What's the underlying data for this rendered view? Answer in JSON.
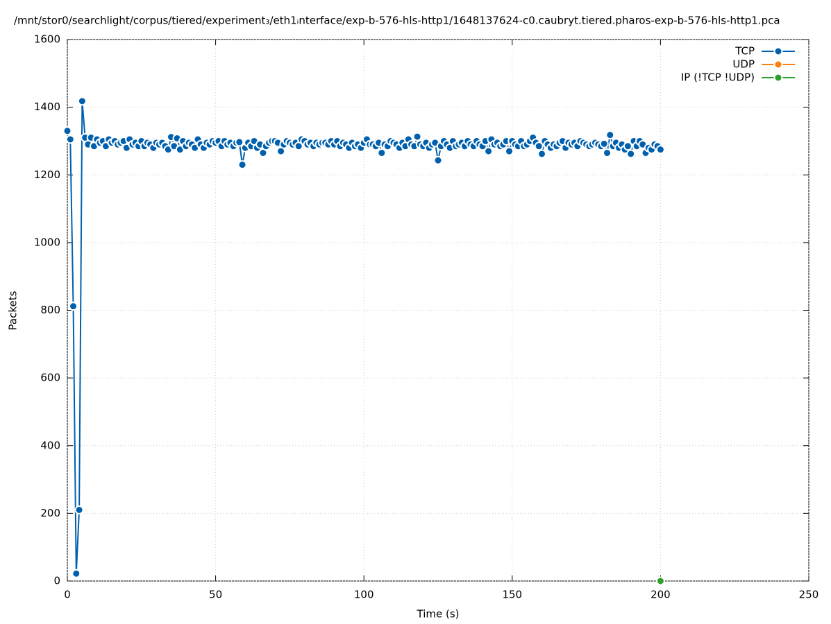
{
  "chart_data": {
    "type": "line",
    "title": "/mnt/stor0/searchlight/corpus/tiered/experiment₃/eth1ᵢnterface/exp-b-576-hls-http1/1648137624-c0.caubryt.tiered.pharos-exp-b-576-hls-http1.pca",
    "xlabel": "Time (s)",
    "ylabel": "Packets",
    "xlim": [
      0,
      250
    ],
    "xticks": [
      0,
      50,
      100,
      150,
      200,
      250
    ],
    "ylim": [
      0,
      1600
    ],
    "yticks": [
      0,
      200,
      400,
      600,
      800,
      1000,
      1200,
      1400,
      1600
    ],
    "grid": true,
    "legend": "upper right",
    "series": [
      {
        "name": "TCP",
        "color": "#0060ad",
        "x": [
          0,
          1,
          2,
          3,
          4,
          5,
          6,
          7,
          8,
          9,
          10,
          11,
          12,
          13,
          14,
          15,
          16,
          17,
          18,
          19,
          20,
          21,
          22,
          23,
          24,
          25,
          26,
          27,
          28,
          29,
          30,
          31,
          32,
          33,
          34,
          35,
          36,
          37,
          38,
          39,
          40,
          41,
          42,
          43,
          44,
          45,
          46,
          47,
          48,
          49,
          50,
          51,
          52,
          53,
          54,
          55,
          56,
          57,
          58,
          59,
          60,
          61,
          62,
          63,
          64,
          65,
          66,
          67,
          68,
          69,
          70,
          71,
          72,
          73,
          74,
          75,
          76,
          77,
          78,
          79,
          80,
          81,
          82,
          83,
          84,
          85,
          86,
          87,
          88,
          89,
          90,
          91,
          92,
          93,
          94,
          95,
          96,
          97,
          98,
          99,
          100,
          101,
          102,
          103,
          104,
          105,
          106,
          107,
          108,
          109,
          110,
          111,
          112,
          113,
          114,
          115,
          116,
          117,
          118,
          119,
          120,
          121,
          122,
          123,
          124,
          125,
          126,
          127,
          128,
          129,
          130,
          131,
          132,
          133,
          134,
          135,
          136,
          137,
          138,
          139,
          140,
          141,
          142,
          143,
          144,
          145,
          146,
          147,
          148,
          149,
          150,
          151,
          152,
          153,
          154,
          155,
          156,
          157,
          158,
          159,
          160,
          161,
          162,
          163,
          164,
          165,
          166,
          167,
          168,
          169,
          170,
          171,
          172,
          173,
          174,
          175,
          176,
          177,
          178,
          179,
          180,
          181,
          182,
          183,
          184,
          185,
          186,
          187,
          188,
          189,
          190,
          191,
          192,
          193,
          194,
          195,
          196,
          197,
          198,
          199,
          200
        ],
        "values": [
          1330,
          1305,
          812,
          22,
          210,
          1418,
          1310,
          1290,
          1310,
          1285,
          1305,
          1295,
          1300,
          1285,
          1305,
          1295,
          1300,
          1290,
          1295,
          1300,
          1280,
          1305,
          1290,
          1295,
          1285,
          1300,
          1285,
          1295,
          1290,
          1280,
          1295,
          1290,
          1295,
          1285,
          1275,
          1312,
          1285,
          1308,
          1275,
          1300,
          1285,
          1295,
          1290,
          1280,
          1305,
          1290,
          1280,
          1295,
          1290,
          1300,
          1295,
          1300,
          1285,
          1300,
          1290,
          1295,
          1285,
          1295,
          1297,
          1230,
          1280,
          1295,
          1285,
          1300,
          1280,
          1290,
          1265,
          1285,
          1295,
          1300,
          1300,
          1295,
          1270,
          1290,
          1300,
          1295,
          1290,
          1295,
          1285,
          1305,
          1300,
          1290,
          1295,
          1285,
          1295,
          1290,
          1295,
          1295,
          1290,
          1300,
          1290,
          1300,
          1285,
          1295,
          1290,
          1280,
          1295,
          1285,
          1290,
          1280,
          1295,
          1305,
          1290,
          1290,
          1285,
          1295,
          1265,
          1290,
          1285,
          1300,
          1295,
          1290,
          1280,
          1295,
          1285,
          1305,
          1290,
          1285,
          1313,
          1290,
          1285,
          1295,
          1280,
          1290,
          1295,
          1243,
          1285,
          1300,
          1290,
          1280,
          1300,
          1285,
          1290,
          1295,
          1285,
          1300,
          1290,
          1285,
          1300,
          1290,
          1285,
          1300,
          1270,
          1305,
          1290,
          1295,
          1285,
          1290,
          1300,
          1270,
          1300,
          1290,
          1285,
          1300,
          1285,
          1290,
          1300,
          1310,
          1295,
          1285,
          1262,
          1300,
          1290,
          1280,
          1290,
          1285,
          1295,
          1300,
          1280,
          1295,
          1290,
          1295,
          1285,
          1300,
          1295,
          1290,
          1285,
          1290,
          1295,
          1290,
          1285,
          1292,
          1265,
          1318,
          1285,
          1295,
          1280,
          1290,
          1275,
          1285,
          1262,
          1300,
          1285,
          1300,
          1290,
          1265,
          1280,
          1275,
          1290,
          1285,
          1275
        ]
      },
      {
        "name": "UDP",
        "color": "#ff7f0e",
        "x": [],
        "values": []
      },
      {
        "name": "IP (!TCP  !UDP)",
        "color": "#2ca02c",
        "x": [
          200
        ],
        "values": [
          0
        ]
      }
    ]
  }
}
